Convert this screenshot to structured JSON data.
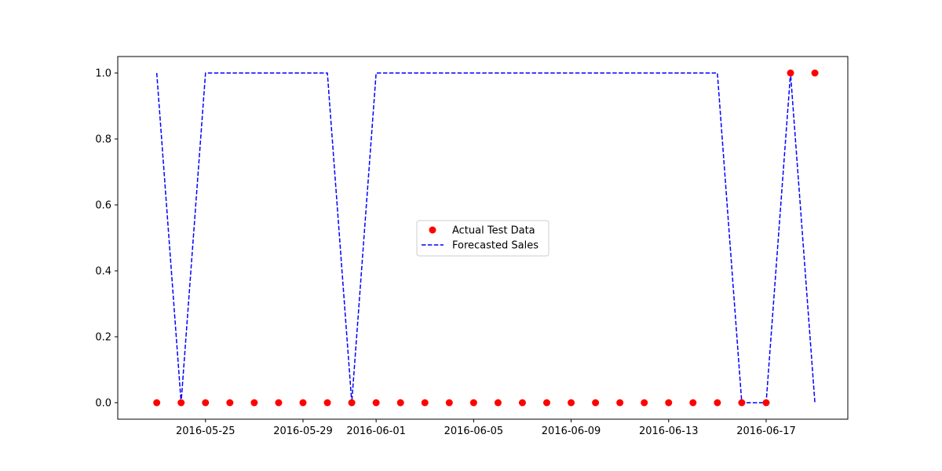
{
  "chart_data": {
    "type": "line",
    "title": "",
    "xlabel": "",
    "ylabel": "",
    "x": [
      "2016-05-23",
      "2016-05-24",
      "2016-05-25",
      "2016-05-26",
      "2016-05-27",
      "2016-05-28",
      "2016-05-29",
      "2016-05-30",
      "2016-05-31",
      "2016-06-01",
      "2016-06-02",
      "2016-06-03",
      "2016-06-04",
      "2016-06-05",
      "2016-06-06",
      "2016-06-07",
      "2016-06-08",
      "2016-06-09",
      "2016-06-10",
      "2016-06-11",
      "2016-06-12",
      "2016-06-13",
      "2016-06-14",
      "2016-06-15",
      "2016-06-16",
      "2016-06-17",
      "2016-06-18",
      "2016-06-19"
    ],
    "xlim": [
      "2016-05-22",
      "2016-06-20"
    ],
    "ylim": [
      -0.05,
      1.05
    ],
    "x_ticks": [
      "2016-05-25",
      "2016-05-29",
      "2016-06-01",
      "2016-06-05",
      "2016-06-09",
      "2016-06-13",
      "2016-06-17"
    ],
    "y_ticks": [
      "0.0",
      "0.2",
      "0.4",
      "0.6",
      "0.8",
      "1.0"
    ],
    "grid": false,
    "legend_position": "center",
    "series": [
      {
        "name": "Actual Test Data",
        "type": "scatter",
        "color": "#ff0000",
        "values": [
          0,
          0,
          0,
          0,
          0,
          0,
          0,
          0,
          0,
          0,
          0,
          0,
          0,
          0,
          0,
          0,
          0,
          0,
          0,
          0,
          0,
          0,
          0,
          0,
          0,
          0,
          1,
          1
        ]
      },
      {
        "name": "Forecasted Sales",
        "type": "line",
        "style": "dashed",
        "color": "#0000ff",
        "values": [
          1,
          0,
          1,
          1,
          1,
          1,
          1,
          1,
          0,
          1,
          1,
          1,
          1,
          1,
          1,
          1,
          1,
          1,
          1,
          1,
          1,
          1,
          1,
          1,
          0,
          0,
          1,
          0
        ]
      }
    ]
  }
}
